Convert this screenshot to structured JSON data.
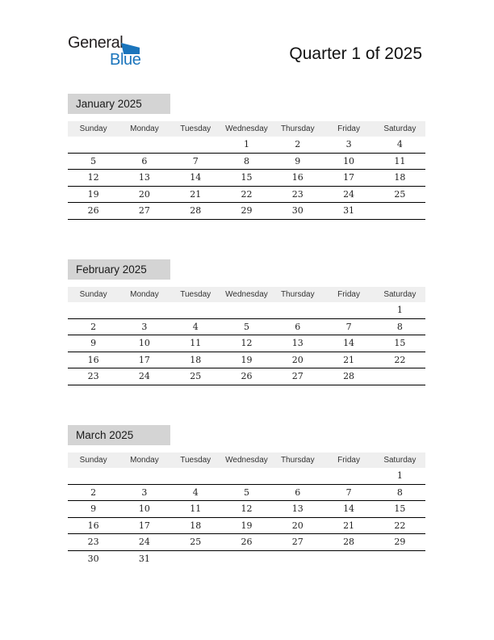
{
  "logo": {
    "general": "General",
    "blue": "Blue"
  },
  "header": {
    "title": "Quarter 1 of 2025"
  },
  "calendar": {
    "day_headers": [
      "Sunday",
      "Monday",
      "Tuesday",
      "Wednesday",
      "Thursday",
      "Friday",
      "Saturday"
    ],
    "months": [
      {
        "title": "January 2025",
        "weeks": [
          [
            "",
            "",
            "",
            "1",
            "2",
            "3",
            "4"
          ],
          [
            "5",
            "6",
            "7",
            "8",
            "9",
            "10",
            "11"
          ],
          [
            "12",
            "13",
            "14",
            "15",
            "16",
            "17",
            "18"
          ],
          [
            "19",
            "20",
            "21",
            "22",
            "23",
            "24",
            "25"
          ],
          [
            "26",
            "27",
            "28",
            "29",
            "30",
            "31",
            ""
          ]
        ]
      },
      {
        "title": "February 2025",
        "weeks": [
          [
            "",
            "",
            "",
            "",
            "",
            "",
            "1"
          ],
          [
            "2",
            "3",
            "4",
            "5",
            "6",
            "7",
            "8"
          ],
          [
            "9",
            "10",
            "11",
            "12",
            "13",
            "14",
            "15"
          ],
          [
            "16",
            "17",
            "18",
            "19",
            "20",
            "21",
            "22"
          ],
          [
            "23",
            "24",
            "25",
            "26",
            "27",
            "28",
            ""
          ]
        ]
      },
      {
        "title": "March 2025",
        "weeks": [
          [
            "",
            "",
            "",
            "",
            "",
            "",
            "1"
          ],
          [
            "2",
            "3",
            "4",
            "5",
            "6",
            "7",
            "8"
          ],
          [
            "9",
            "10",
            "11",
            "12",
            "13",
            "14",
            "15"
          ],
          [
            "16",
            "17",
            "18",
            "19",
            "20",
            "21",
            "22"
          ],
          [
            "23",
            "24",
            "25",
            "26",
            "27",
            "28",
            "29"
          ],
          [
            "30",
            "31",
            "",
            "",
            "",
            "",
            ""
          ]
        ]
      }
    ]
  },
  "colors": {
    "brand_blue": "#1b75bc",
    "logo_text_dark": "#231f20",
    "month_title_bg": "#d4d4d4",
    "day_header_bg": "#efefef",
    "row_line": "#000000"
  }
}
